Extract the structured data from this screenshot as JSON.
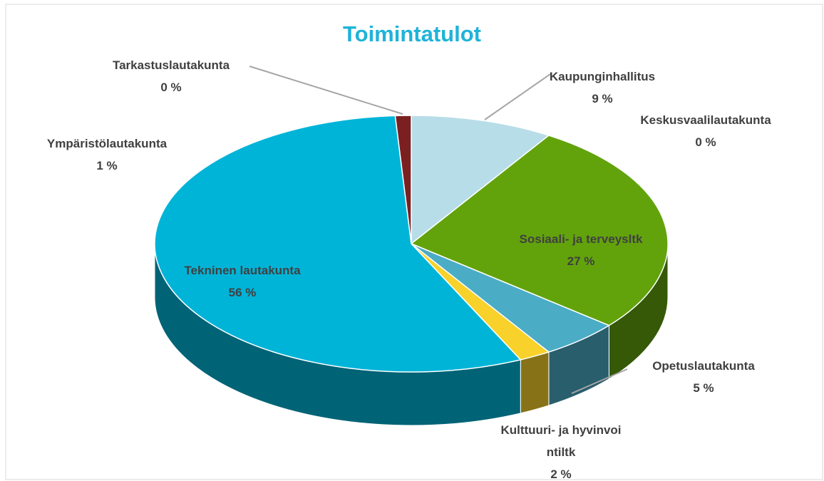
{
  "chart_data": {
    "type": "pie3d",
    "title": "Toimintatulot",
    "categories": [
      "Kaupunginhallitus",
      "Keskusvaalilautakunta",
      "Sosiaali- ja terveysltk",
      "Opetuslautakunta",
      "Kulttuuri- ja hyvinvointiltk",
      "Tekninen lautakunta",
      "Ympäristölautakunta",
      "Tarkastuslautakunta"
    ],
    "values": [
      9,
      0,
      27,
      5,
      2,
      56,
      1,
      0
    ],
    "value_labels": [
      "9 %",
      "0 %",
      "27 %",
      "5 %",
      "2 %",
      "56 %",
      "1 %",
      "0 %"
    ],
    "colors": [
      "#b7dde8",
      "#8fbc3a",
      "#62a30c",
      "#4bacc6",
      "#f8d12a",
      "#00b4d8",
      "#7b2020",
      "#9a9a9a"
    ]
  }
}
